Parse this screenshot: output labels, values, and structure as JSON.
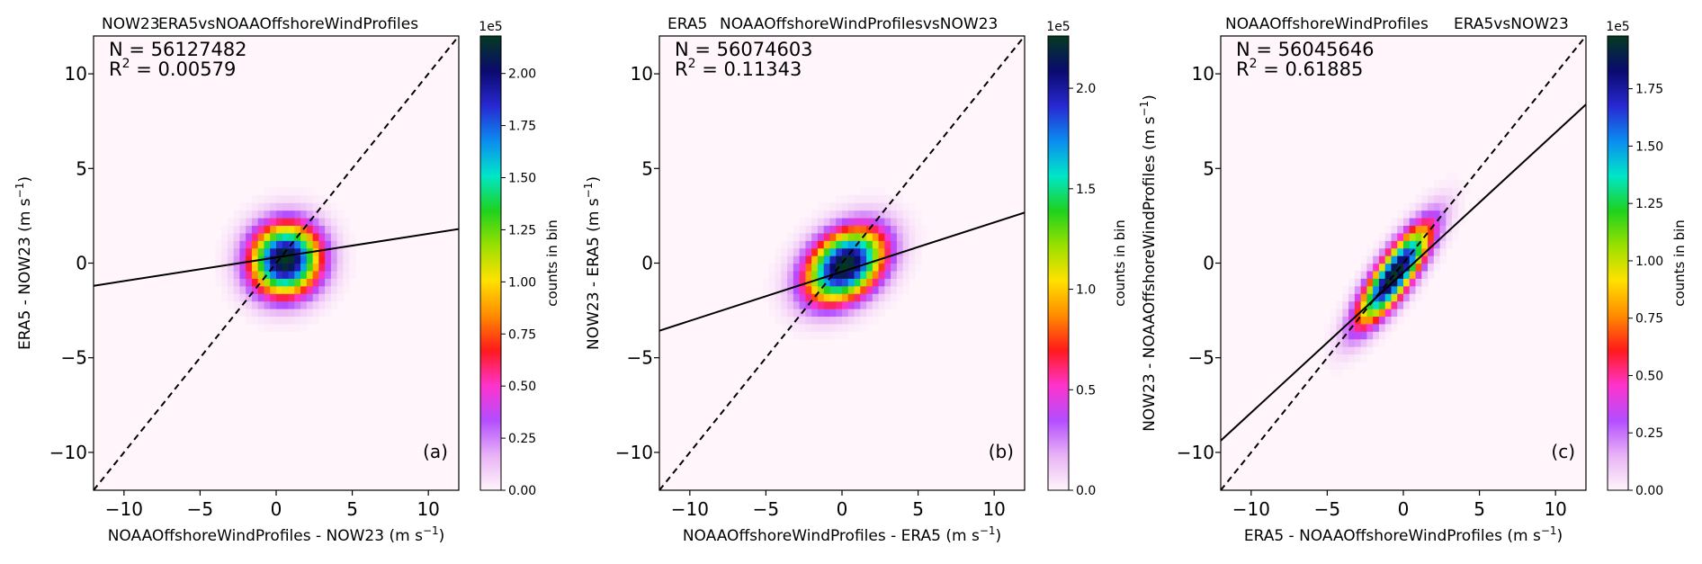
{
  "colorbar_stops": [
    "#fff5fb",
    "#e8b2f5",
    "#b34dff",
    "#ff33cc",
    "#ff1a1a",
    "#ff8c00",
    "#ffe100",
    "#9be000",
    "#1ed21e",
    "#00e6c8",
    "#0b8cf0",
    "#2828d2",
    "#0a0a6e",
    "#043a20"
  ],
  "chart_data": [
    {
      "type": "heatmap",
      "panel_label": "(a)",
      "title_left": "NOW23",
      "title_right": "ERA5vsNOAAOffshoreWindProfiles",
      "xlabel": "NOAAOffshoreWindProfiles - NOW23",
      "ylabel": "ERA5 - NOW23",
      "unit": "m s",
      "unit_exp": "−1",
      "xlim": [
        -12,
        12
      ],
      "ylim": [
        -12,
        12
      ],
      "xticks": [
        -10,
        -5,
        0,
        5,
        10
      ],
      "yticks": [
        -10,
        -5,
        0,
        5,
        10
      ],
      "xtick_labels": [
        "−10",
        "−5",
        "0",
        "5",
        "10"
      ],
      "ytick_labels": [
        "−10",
        "−5",
        "0",
        "5",
        "10"
      ],
      "stats": {
        "n_label": "N = 56127482",
        "r2_label": "R",
        "r2_exp": "2",
        "r2_value": " = 0.00579"
      },
      "density": {
        "cx": 0.6,
        "cy": 0.2,
        "sx": 1.65,
        "sy": 1.35,
        "rho": 0.05
      },
      "identity_line": {
        "slope": 1,
        "intercept": 0
      },
      "fit_line": {
        "slope": 0.125,
        "intercept": 0.3
      },
      "colorbar": {
        "label": "counts in bin",
        "exponent": "1e5",
        "max": 2.18,
        "ticks": [
          0,
          0.25,
          0.5,
          0.75,
          1.0,
          1.25,
          1.5,
          1.75,
          2.0
        ],
        "tick_labels": [
          "0.00",
          "0.25",
          "0.50",
          "0.75",
          "1.00",
          "1.25",
          "1.50",
          "1.75",
          "2.00"
        ]
      }
    },
    {
      "type": "heatmap",
      "panel_label": "(b)",
      "title_left": "ERA5",
      "title_right": "NOAAOffshoreWindProfilesvsNOW23",
      "xlabel": "NOAAOffshoreWindProfiles - ERA5",
      "ylabel": "NOW23 - ERA5",
      "unit": "m s",
      "unit_exp": "−1",
      "xlim": [
        -12,
        12
      ],
      "ylim": [
        -12,
        12
      ],
      "xticks": [
        -10,
        -5,
        0,
        5,
        10
      ],
      "yticks": [
        -10,
        -5,
        0,
        5,
        10
      ],
      "xtick_labels": [
        "−10",
        "−5",
        "0",
        "5",
        "10"
      ],
      "ytick_labels": [
        "−10",
        "−5",
        "0",
        "5",
        "10"
      ],
      "stats": {
        "n_label": "N = 56074603",
        "r2_label": "R",
        "r2_exp": "2",
        "r2_value": " = 0.11343"
      },
      "density": {
        "cx": 0.2,
        "cy": -0.1,
        "sx": 1.85,
        "sy": 1.4,
        "rho": 0.35
      },
      "identity_line": {
        "slope": 1,
        "intercept": 0
      },
      "fit_line": {
        "slope": 0.26,
        "intercept": -0.45
      },
      "colorbar": {
        "label": "counts in bin",
        "exponent": "1e5",
        "max": 2.26,
        "ticks": [
          0,
          0.5,
          1.0,
          1.5,
          2.0
        ],
        "tick_labels": [
          "0.0",
          "0.5",
          "1.0",
          "1.5",
          "2.0"
        ]
      }
    },
    {
      "type": "heatmap",
      "panel_label": "(c)",
      "title_left": "NOAAOffshoreWindProfiles",
      "title_right": "ERA5vsNOW23",
      "xlabel": "ERA5 - NOAAOffshoreWindProfiles",
      "ylabel": "NOW23 - NOAAOffshoreWindProfiles",
      "unit": "m s",
      "unit_exp": "−1",
      "xlim": [
        -12,
        12
      ],
      "ylim": [
        -12,
        12
      ],
      "xticks": [
        -10,
        -5,
        0,
        5,
        10
      ],
      "yticks": [
        -10,
        -5,
        0,
        5,
        10
      ],
      "xtick_labels": [
        "−10",
        "−5",
        "0",
        "5",
        "10"
      ],
      "ytick_labels": [
        "−10",
        "−5",
        "0",
        "5",
        "10"
      ],
      "stats": {
        "n_label": "N = 56045646",
        "r2_label": "R",
        "r2_exp": "2",
        "r2_value": " = 0.61885"
      },
      "density": {
        "cx": -0.6,
        "cy": -0.6,
        "sx": 1.7,
        "sy": 1.85,
        "rho": 0.83
      },
      "identity_line": {
        "slope": 1,
        "intercept": 0
      },
      "fit_line": {
        "slope": 0.74,
        "intercept": -0.5
      },
      "colorbar": {
        "label": "counts in bin",
        "exponent": "1e5",
        "max": 1.98,
        "ticks": [
          0,
          0.25,
          0.5,
          0.75,
          1.0,
          1.25,
          1.5,
          1.75
        ],
        "tick_labels": [
          "0.00",
          "0.25",
          "0.50",
          "0.75",
          "1.00",
          "1.25",
          "1.50",
          "1.75"
        ]
      }
    }
  ]
}
